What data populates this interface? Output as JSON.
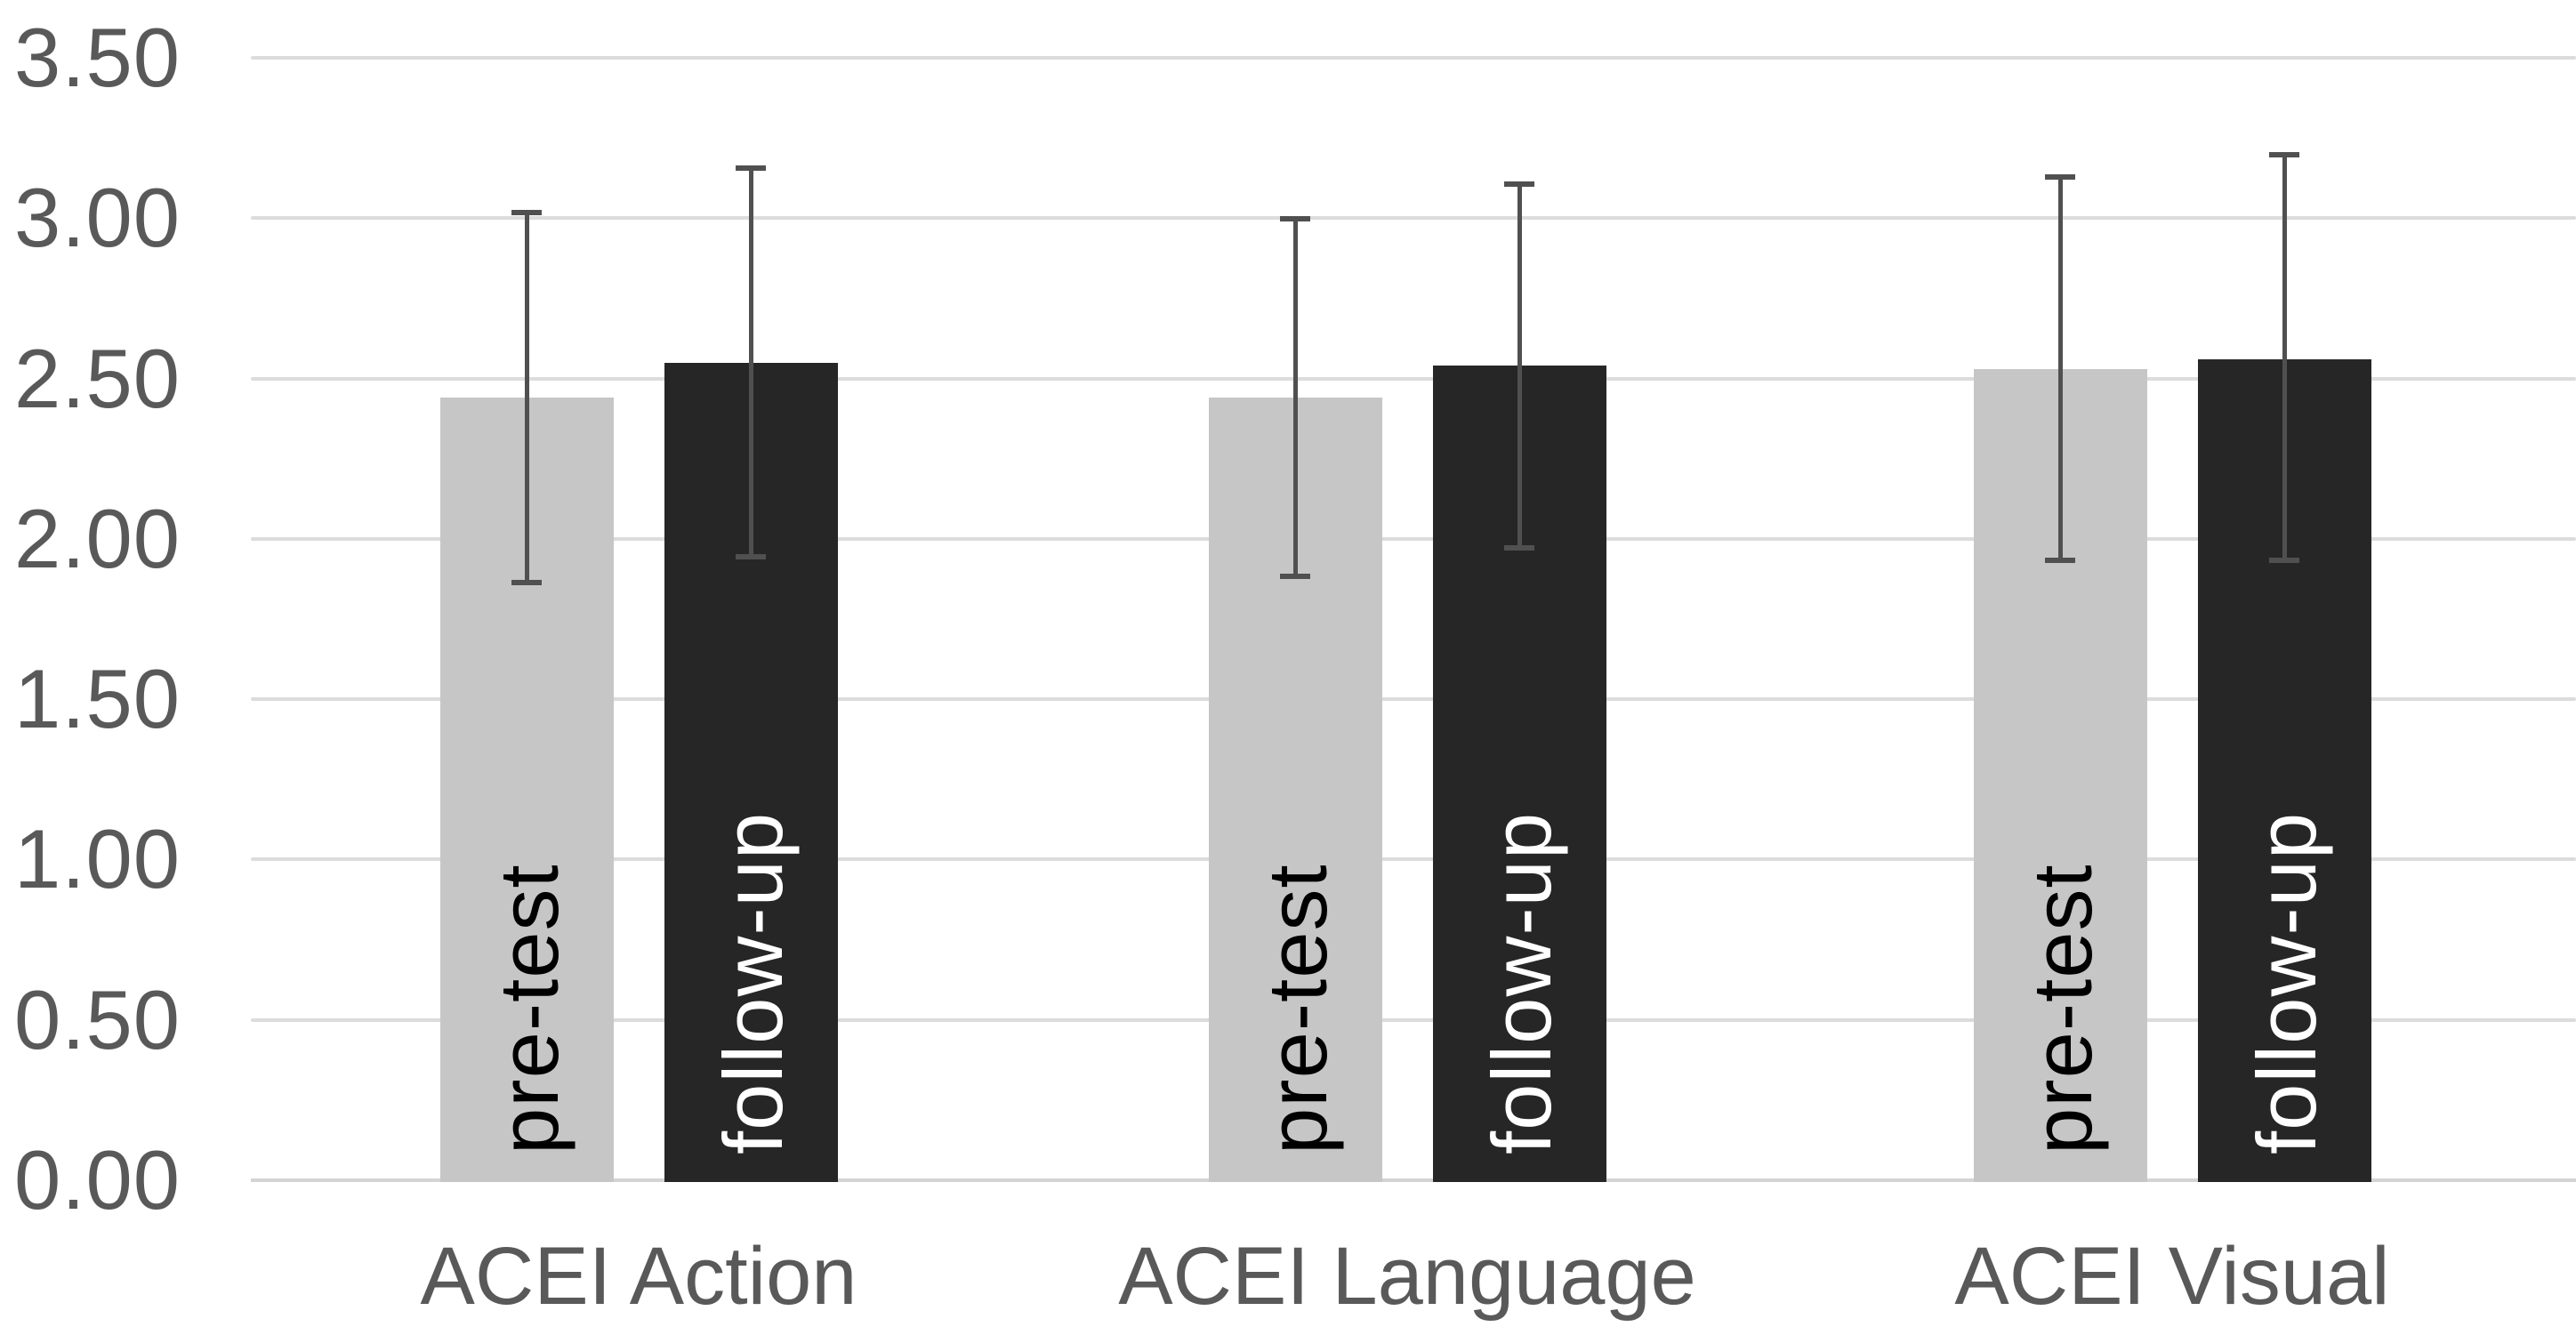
{
  "chart_data": {
    "type": "bar",
    "title": "",
    "categories": [
      "ACEI Action",
      "ACEI Language",
      "ACEI Visual"
    ],
    "series": [
      {
        "name": "pre-test",
        "bar_color": "#c6c6c6",
        "label_color": "#000000",
        "values": [
          2.44,
          2.44,
          2.53
        ],
        "error_upper": [
          3.02,
          3.0,
          3.13
        ],
        "error_lower": [
          1.86,
          1.88,
          1.93
        ]
      },
      {
        "name": "follow-up",
        "bar_color": "#262626",
        "label_color": "#ffffff",
        "values": [
          2.55,
          2.54,
          2.56
        ],
        "error_upper": [
          3.16,
          3.11,
          3.2
        ],
        "error_lower": [
          1.94,
          1.97,
          1.93
        ]
      }
    ],
    "ylim": [
      0,
      3.5
    ],
    "ytick_step": 0.5,
    "ytick_labels": [
      "0.00",
      "0.50",
      "1.00",
      "1.50",
      "2.00",
      "2.50",
      "3.00",
      "3.50"
    ],
    "xlabel": "",
    "ylabel": "",
    "legend": "none",
    "grid": true,
    "bar_label_rotation": "vertical-bottom-to-top",
    "colors": {
      "background": "#ffffff",
      "gridline": "#dcdcdc",
      "axis_line": "#d4d4d4",
      "tick_label": "#595959",
      "category_label": "#595959",
      "error_bar": "#505050"
    }
  }
}
